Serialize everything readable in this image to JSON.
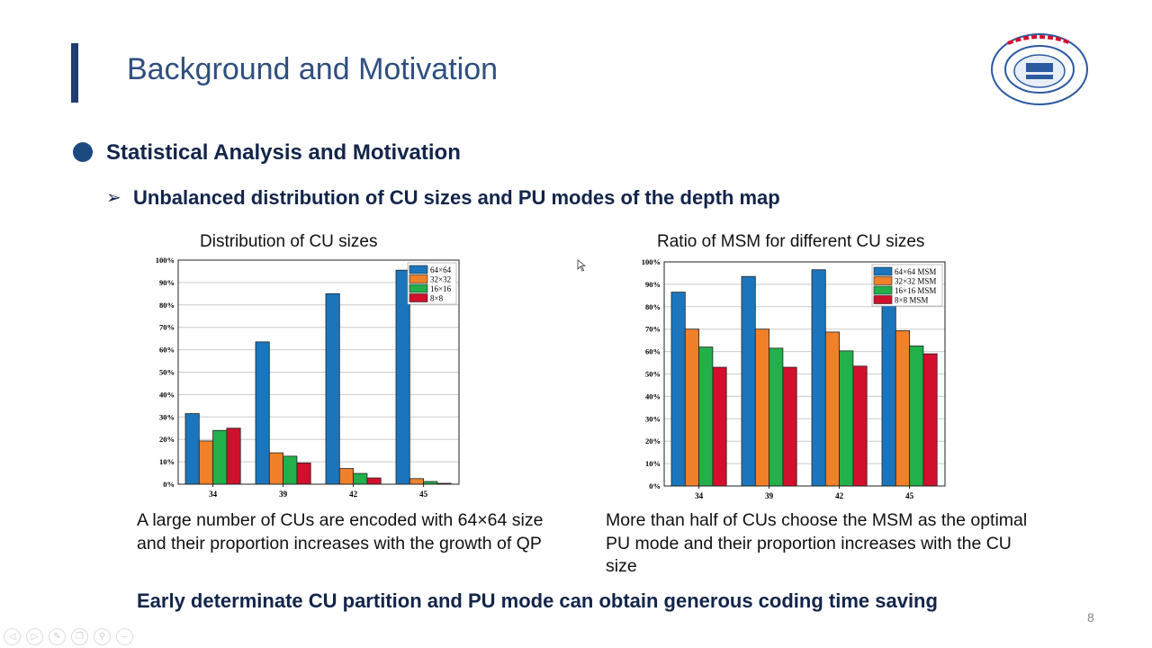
{
  "slide": {
    "title": "Background and Motivation",
    "heading": "Statistical Analysis and Motivation",
    "subheading_marker": "➢",
    "subheading": "Unbalanced distribution of CU sizes and PU modes of the depth map",
    "caption_left": "A large number of CUs are encoded with 64×64 size and their proportion increases with the growth of QP",
    "caption_right": "More than half of CUs choose the MSM as the optimal PU mode and their proportion increases with the CU size",
    "conclusion": "Early determinate CU partition and PU mode can obtain generous coding time saving",
    "page_number": "8",
    "accent_color": "#1f3d6e",
    "logo_icon": "university-seal-logo",
    "logo_text": "HUAZHONG UNIVERSITY OF SCIENCE AND TECHNOLOGY"
  },
  "controls": [
    "prev-icon",
    "next-icon",
    "pen-icon",
    "copy-icon",
    "zoom-icon",
    "more-icon"
  ],
  "chart_data": [
    {
      "type": "bar",
      "title": "Distribution of CU sizes",
      "categories": [
        "34",
        "39",
        "42",
        "45"
      ],
      "ylim": [
        0,
        100
      ],
      "yticks": [
        "0%",
        "10%",
        "20%",
        "30%",
        "40%",
        "50%",
        "60%",
        "70%",
        "80%",
        "90%",
        "100%"
      ],
      "grid": true,
      "legend": "top-right",
      "series": [
        {
          "name": "64×64",
          "color": "#1b75bc",
          "values": [
            31.5,
            63.5,
            85,
            95.5
          ]
        },
        {
          "name": "32×32",
          "color": "#f0802a",
          "values": [
            19.3,
            14,
            7,
            2.5
          ]
        },
        {
          "name": "16×16",
          "color": "#22b04b",
          "values": [
            24,
            12.5,
            4.8,
            1.2
          ]
        },
        {
          "name": "8×8",
          "color": "#d0102c",
          "values": [
            25,
            9.5,
            2.8,
            0.4
          ]
        }
      ]
    },
    {
      "type": "bar",
      "title": "Ratio of MSM for different CU sizes",
      "categories": [
        "34",
        "39",
        "42",
        "45"
      ],
      "ylim": [
        0,
        100
      ],
      "yticks": [
        "0%",
        "10%",
        "20%",
        "30%",
        "40%",
        "50%",
        "60%",
        "70%",
        "80%",
        "90%",
        "100%"
      ],
      "grid": true,
      "legend": "top-right",
      "series": [
        {
          "name": "64×64 MSM",
          "color": "#1b75bc",
          "values": [
            86.5,
            93.5,
            96.5,
            98.3
          ]
        },
        {
          "name": "32×32 MSM",
          "color": "#f0802a",
          "values": [
            70,
            70,
            68.7,
            69.3
          ]
        },
        {
          "name": "16×16 MSM",
          "color": "#22b04b",
          "values": [
            62,
            61.5,
            60.3,
            62.5
          ]
        },
        {
          "name": "8×8 MSM",
          "color": "#d0102c",
          "values": [
            53,
            53,
            53.5,
            59
          ]
        }
      ]
    }
  ]
}
